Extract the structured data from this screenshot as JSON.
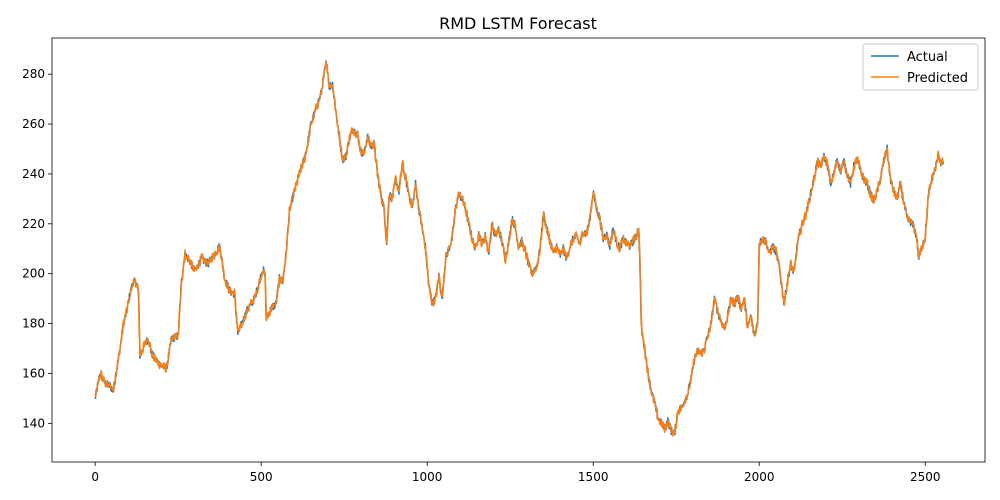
{
  "chart_data": {
    "type": "line",
    "title": "RMD LSTM Forecast",
    "xlabel": "",
    "ylabel": "",
    "xlim": [
      -130,
      2680
    ],
    "ylim": [
      124.5,
      294.5
    ],
    "xticks": [
      0,
      500,
      1000,
      1500,
      2000,
      2500
    ],
    "yticks": [
      140,
      160,
      180,
      200,
      220,
      240,
      260,
      280
    ],
    "grid": false,
    "legend": "top-right",
    "series": [
      {
        "name": "Actual",
        "color": "#1f77b4",
        "anchors": [
          [
            0,
            150
          ],
          [
            15,
            160
          ],
          [
            30,
            156
          ],
          [
            45,
            155
          ],
          [
            55,
            153
          ],
          [
            60,
            158
          ],
          [
            75,
            170
          ],
          [
            85,
            180
          ],
          [
            95,
            185
          ],
          [
            105,
            192
          ],
          [
            115,
            197
          ],
          [
            125,
            196
          ],
          [
            130,
            193
          ],
          [
            135,
            167
          ],
          [
            150,
            172
          ],
          [
            160,
            174
          ],
          [
            170,
            168
          ],
          [
            185,
            165
          ],
          [
            200,
            163
          ],
          [
            215,
            162
          ],
          [
            230,
            174
          ],
          [
            250,
            175
          ],
          [
            260,
            197
          ],
          [
            270,
            208
          ],
          [
            285,
            205
          ],
          [
            300,
            201
          ],
          [
            320,
            206
          ],
          [
            340,
            204
          ],
          [
            360,
            208
          ],
          [
            375,
            211
          ],
          [
            380,
            207
          ],
          [
            390,
            198
          ],
          [
            405,
            193
          ],
          [
            420,
            192
          ],
          [
            425,
            183
          ],
          [
            430,
            176
          ],
          [
            445,
            181
          ],
          [
            460,
            186
          ],
          [
            480,
            190
          ],
          [
            495,
            197
          ],
          [
            505,
            202
          ],
          [
            512,
            199
          ],
          [
            515,
            182
          ],
          [
            530,
            186
          ],
          [
            545,
            188
          ],
          [
            555,
            198
          ],
          [
            565,
            197
          ],
          [
            575,
            208
          ],
          [
            585,
            225
          ],
          [
            600,
            233
          ],
          [
            615,
            240
          ],
          [
            630,
            246
          ],
          [
            640,
            252
          ],
          [
            650,
            260
          ],
          [
            665,
            266
          ],
          [
            680,
            272
          ],
          [
            690,
            280
          ],
          [
            695,
            284
          ],
          [
            700,
            282
          ],
          [
            705,
            275
          ],
          [
            715,
            276
          ],
          [
            725,
            265
          ],
          [
            735,
            255
          ],
          [
            745,
            246
          ],
          [
            755,
            247
          ],
          [
            765,
            254
          ],
          [
            775,
            258
          ],
          [
            790,
            256
          ],
          [
            800,
            249
          ],
          [
            810,
            248
          ],
          [
            820,
            255
          ],
          [
            830,
            251
          ],
          [
            840,
            252
          ],
          [
            850,
            240
          ],
          [
            860,
            232
          ],
          [
            870,
            226
          ],
          [
            878,
            212
          ],
          [
            885,
            232
          ],
          [
            895,
            230
          ],
          [
            905,
            238
          ],
          [
            915,
            233
          ],
          [
            925,
            244
          ],
          [
            935,
            238
          ],
          [
            945,
            232
          ],
          [
            955,
            226
          ],
          [
            965,
            236
          ],
          [
            975,
            226
          ],
          [
            985,
            218
          ],
          [
            995,
            210
          ],
          [
            1005,
            195
          ],
          [
            1015,
            188
          ],
          [
            1025,
            190
          ],
          [
            1035,
            199
          ],
          [
            1045,
            190
          ],
          [
            1055,
            206
          ],
          [
            1065,
            210
          ],
          [
            1075,
            214
          ],
          [
            1085,
            226
          ],
          [
            1095,
            232
          ],
          [
            1105,
            230
          ],
          [
            1115,
            226
          ],
          [
            1125,
            220
          ],
          [
            1135,
            214
          ],
          [
            1145,
            210
          ],
          [
            1155,
            216
          ],
          [
            1165,
            212
          ],
          [
            1175,
            215
          ],
          [
            1185,
            208
          ],
          [
            1195,
            220
          ],
          [
            1205,
            215
          ],
          [
            1215,
            218
          ],
          [
            1225,
            213
          ],
          [
            1235,
            206
          ],
          [
            1245,
            212
          ],
          [
            1255,
            222
          ],
          [
            1265,
            219
          ],
          [
            1275,
            211
          ],
          [
            1285,
            213
          ],
          [
            1295,
            209
          ],
          [
            1305,
            204
          ],
          [
            1315,
            200
          ],
          [
            1330,
            203
          ],
          [
            1340,
            210
          ],
          [
            1350,
            224
          ],
          [
            1360,
            218
          ],
          [
            1370,
            213
          ],
          [
            1380,
            208
          ],
          [
            1390,
            211
          ],
          [
            1400,
            207
          ],
          [
            1410,
            210
          ],
          [
            1420,
            206
          ],
          [
            1430,
            211
          ],
          [
            1440,
            214
          ],
          [
            1450,
            215
          ],
          [
            1460,
            212
          ],
          [
            1470,
            217
          ],
          [
            1480,
            216
          ],
          [
            1490,
            222
          ],
          [
            1500,
            233
          ],
          [
            1510,
            226
          ],
          [
            1520,
            222
          ],
          [
            1530,
            214
          ],
          [
            1540,
            216
          ],
          [
            1550,
            211
          ],
          [
            1560,
            218
          ],
          [
            1570,
            213
          ],
          [
            1580,
            210
          ],
          [
            1590,
            214
          ],
          [
            1600,
            212
          ],
          [
            1610,
            211
          ],
          [
            1620,
            213
          ],
          [
            1630,
            215
          ],
          [
            1636,
            219
          ],
          [
            1640,
            208
          ],
          [
            1645,
            178
          ],
          [
            1655,
            170
          ],
          [
            1665,
            160
          ],
          [
            1675,
            153
          ],
          [
            1685,
            148
          ],
          [
            1695,
            142
          ],
          [
            1705,
            140
          ],
          [
            1715,
            138
          ],
          [
            1725,
            141
          ],
          [
            1735,
            137
          ],
          [
            1745,
            136
          ],
          [
            1755,
            145
          ],
          [
            1765,
            146
          ],
          [
            1775,
            149
          ],
          [
            1785,
            152
          ],
          [
            1795,
            158
          ],
          [
            1805,
            166
          ],
          [
            1815,
            169
          ],
          [
            1825,
            168
          ],
          [
            1835,
            170
          ],
          [
            1845,
            175
          ],
          [
            1855,
            180
          ],
          [
            1865,
            190
          ],
          [
            1875,
            185
          ],
          [
            1885,
            181
          ],
          [
            1895,
            178
          ],
          [
            1905,
            183
          ],
          [
            1915,
            190
          ],
          [
            1925,
            188
          ],
          [
            1935,
            191
          ],
          [
            1945,
            186
          ],
          [
            1955,
            190
          ],
          [
            1965,
            178
          ],
          [
            1975,
            183
          ],
          [
            1985,
            175
          ],
          [
            1995,
            180
          ],
          [
            2000,
            212
          ],
          [
            2010,
            214
          ],
          [
            2020,
            213
          ],
          [
            2030,
            208
          ],
          [
            2040,
            211
          ],
          [
            2050,
            209
          ],
          [
            2060,
            203
          ],
          [
            2075,
            188
          ],
          [
            2085,
            197
          ],
          [
            2095,
            204
          ],
          [
            2105,
            200
          ],
          [
            2115,
            212
          ],
          [
            2125,
            218
          ],
          [
            2135,
            222
          ],
          [
            2145,
            226
          ],
          [
            2155,
            232
          ],
          [
            2165,
            238
          ],
          [
            2175,
            245
          ],
          [
            2185,
            243
          ],
          [
            2195,
            247
          ],
          [
            2205,
            244
          ],
          [
            2215,
            236
          ],
          [
            2225,
            240
          ],
          [
            2235,
            246
          ],
          [
            2245,
            241
          ],
          [
            2255,
            245
          ],
          [
            2265,
            240
          ],
          [
            2275,
            236
          ],
          [
            2285,
            243
          ],
          [
            2295,
            246
          ],
          [
            2305,
            241
          ],
          [
            2315,
            238
          ],
          [
            2325,
            236
          ],
          [
            2335,
            232
          ],
          [
            2345,
            229
          ],
          [
            2355,
            233
          ],
          [
            2365,
            238
          ],
          [
            2375,
            245
          ],
          [
            2385,
            250
          ],
          [
            2395,
            238
          ],
          [
            2405,
            233
          ],
          [
            2415,
            230
          ],
          [
            2425,
            236
          ],
          [
            2435,
            229
          ],
          [
            2445,
            222
          ],
          [
            2455,
            221
          ],
          [
            2465,
            219
          ],
          [
            2475,
            214
          ],
          [
            2480,
            206
          ],
          [
            2490,
            211
          ],
          [
            2500,
            215
          ],
          [
            2510,
            232
          ],
          [
            2520,
            238
          ],
          [
            2530,
            242
          ],
          [
            2540,
            248
          ],
          [
            2548,
            244
          ],
          [
            2555,
            245
          ]
        ]
      },
      {
        "name": "Predicted",
        "color": "#ff7f0e"
      }
    ]
  }
}
